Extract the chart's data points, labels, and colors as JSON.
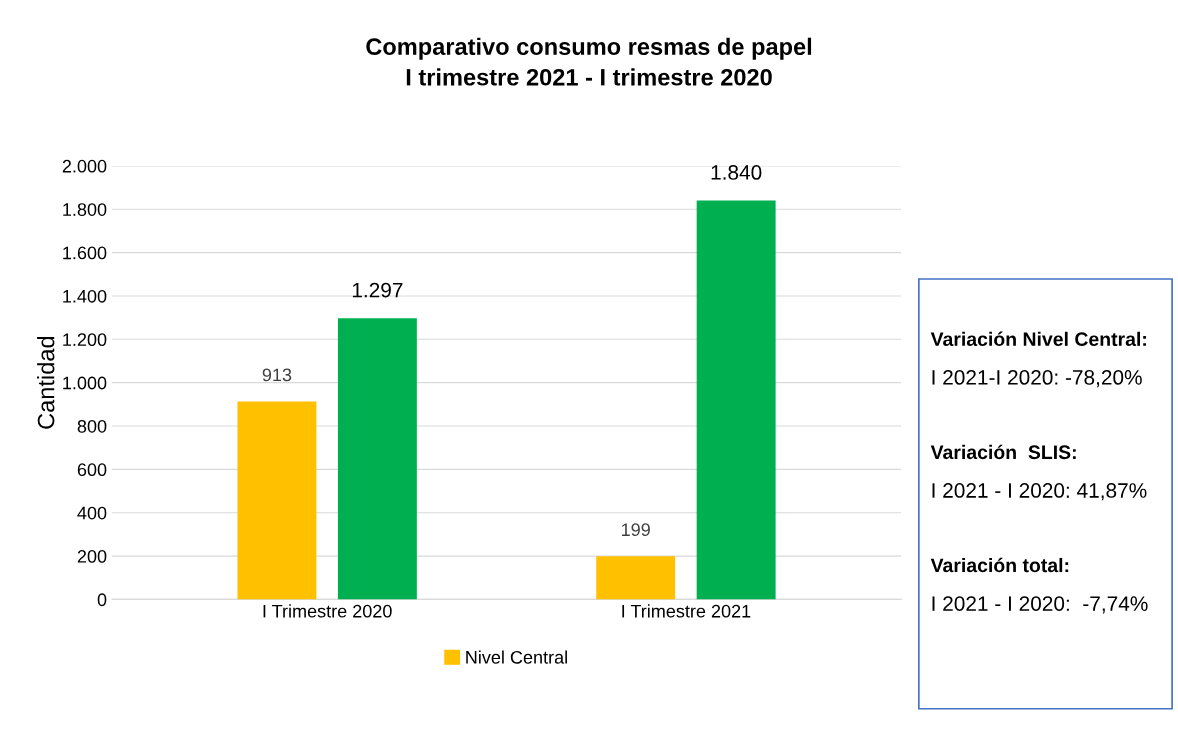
{
  "chart_data": {
    "type": "bar",
    "title": "Comparativo consumo resmas de papel\nI trimestre 2021 - I trimestre 2020",
    "ylabel": "Cantidad",
    "categories": [
      "I Trimestre 2020",
      "I Trimestre 2021"
    ],
    "series": [
      {
        "name": "Nivel Central",
        "color": "#ffc000",
        "values": [
          913,
          199
        ],
        "value_labels": [
          "913",
          "199"
        ]
      },
      {
        "color": "#00b050",
        "values": [
          1297,
          1840
        ],
        "value_labels": [
          "1.297",
          "1.840"
        ]
      }
    ],
    "ylim": [
      0,
      2000
    ],
    "yticks": [
      0,
      200,
      400,
      600,
      800,
      {
        "value": 1000,
        "label": "1.000"
      },
      {
        "value": 1200,
        "label": "1.200"
      },
      {
        "value": 1400,
        "label": "1.400"
      },
      {
        "value": 1600,
        "label": "1.600"
      },
      {
        "value": 1800,
        "label": "1.800"
      },
      {
        "value": 2000,
        "label": "2.000"
      }
    ],
    "grid": "y",
    "legend": "bottom",
    "annotations": [
      "Variación Nivel Central:",
      "I 2021-I 2020: -78,20%",
      "Variación  SLIS:",
      "I 2021 - I 2020: 41,87%",
      "Variación total:",
      "I 2021 - I 2020:  -7,74%"
    ]
  }
}
